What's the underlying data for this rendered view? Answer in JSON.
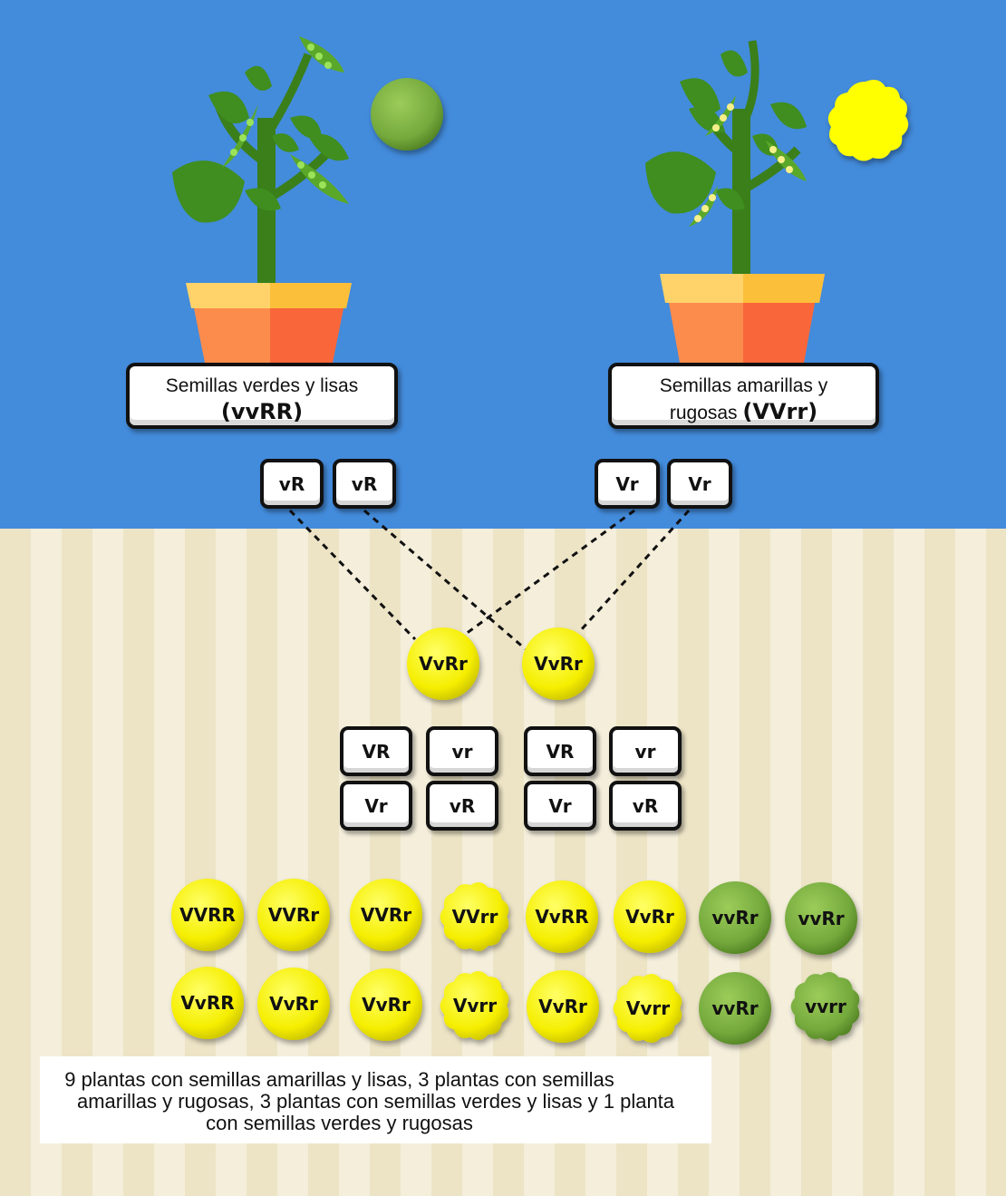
{
  "parents": {
    "left": {
      "label_line1": "Semillas verdes y lisas",
      "label_line2_prefix": "",
      "genotype": "(vvRR)",
      "gametes": [
        "vR",
        "vR"
      ],
      "seed_color": "#8bc34a",
      "seed_shape": "smooth"
    },
    "right": {
      "label_line1": "Semillas amarillas y",
      "label_line2_prefix": "rugosas ",
      "genotype": "(VVrr)",
      "gametes": [
        "Vr",
        "Vr"
      ],
      "seed_color": "#ffff00",
      "seed_shape": "wrinkled"
    }
  },
  "f1": {
    "seeds": [
      "VvRr",
      "VvRr"
    ],
    "gametes_left": [
      "VR",
      "vr",
      "Vr",
      "vR"
    ],
    "gametes_right": [
      "VR",
      "vr",
      "Vr",
      "vR"
    ]
  },
  "f2": {
    "row1": [
      "VVRR",
      "VVRr",
      "VVRr",
      "VVrr",
      "VvRR",
      "VvRr",
      "vvRr",
      "vvRr"
    ],
    "row2": [
      "VvRR",
      "VvRr",
      "VvRr",
      "Vvrr",
      "VvRr",
      "Vvrr",
      "vvRr",
      "vvrr"
    ]
  },
  "summary": {
    "line1": "9 plantas con semillas amarillas y lisas, 3 plantas con semillas",
    "line2": "amarillas y rugosas, 3 plantas con semillas verdes y lisas y 1 planta",
    "line3": "con semillas verdes y rugosas"
  },
  "colors": {
    "sky": "#438bdb",
    "yellow_seed": "#ffff00",
    "green_seed": "#6fa43a",
    "pot_orange": "#fb8c4c",
    "pot_rim": "#ffd36a",
    "leaf": "#3f8e1f"
  }
}
